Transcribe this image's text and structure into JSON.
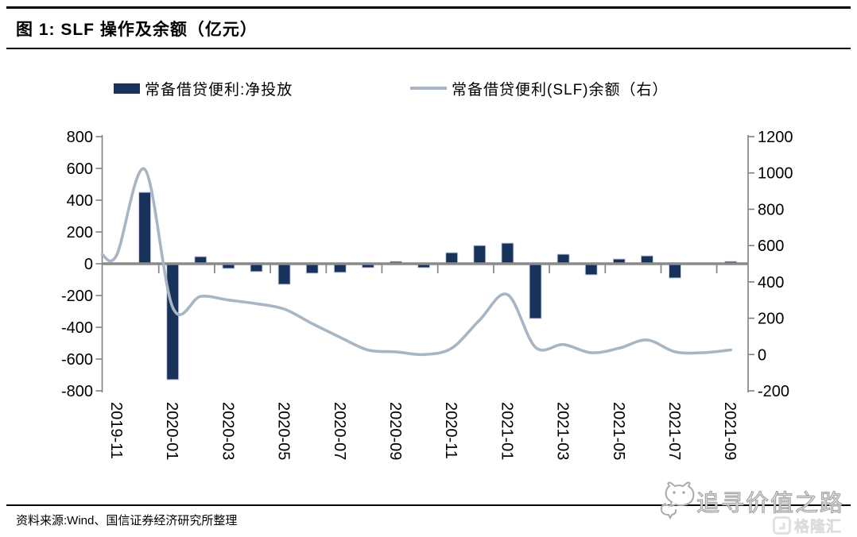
{
  "header": {
    "title": "图 1:  SLF 操作及余额（亿元）"
  },
  "legend": [
    {
      "label": "常备借贷便利:净投放",
      "type": "bar",
      "color": "#17325b"
    },
    {
      "label": "常备借贷便利(SLF)余额（右）",
      "type": "line",
      "color": "#a8b6c4"
    }
  ],
  "chart_data": {
    "type": "bar+line combo, dual y-axis",
    "title": "图 1: SLF 操作及余额（亿元）",
    "categories": [
      "2019-11",
      "2019-12",
      "2020-01",
      "2020-02",
      "2020-03",
      "2020-04",
      "2020-05",
      "2020-06",
      "2020-07",
      "2020-08",
      "2020-09",
      "2020-10",
      "2020-11",
      "2020-12",
      "2021-01",
      "2021-02",
      "2021-03",
      "2021-04",
      "2021-05",
      "2021-06",
      "2021-07",
      "2021-08",
      "2021-09"
    ],
    "x_tick_labels": [
      "2019-11",
      "2020-01",
      "2020-03",
      "2020-05",
      "2020-07",
      "2020-09",
      "2020-11",
      "2021-01",
      "2021-03",
      "2021-05",
      "2021-07",
      "2021-09"
    ],
    "series": [
      {
        "name": "常备借贷便利:净投放",
        "type": "bar",
        "axis": "left",
        "color": "#17325b",
        "values": [
          0,
          450,
          -730,
          45,
          -30,
          -50,
          -130,
          -60,
          -55,
          -25,
          15,
          -25,
          70,
          115,
          130,
          -345,
          60,
          -70,
          30,
          50,
          -90,
          0,
          15
        ]
      },
      {
        "name": "常备借贷便利(SLF)余额（右）",
        "type": "line",
        "axis": "right",
        "color": "#a8b6c4",
        "values": [
          550,
          1020,
          260,
          320,
          300,
          280,
          250,
          170,
          95,
          25,
          15,
          0,
          35,
          190,
          330,
          40,
          55,
          10,
          35,
          80,
          15,
          10,
          25
        ]
      }
    ],
    "left_axis": {
      "min": -800,
      "max": 800,
      "ticks": [
        800,
        600,
        400,
        200,
        0,
        -200,
        -400,
        -600,
        -800
      ]
    },
    "right_axis": {
      "min": -200,
      "max": 1200,
      "ticks": [
        1200,
        1000,
        800,
        600,
        400,
        200,
        0,
        -200
      ]
    },
    "grid": false,
    "legend_position": "top",
    "zero_line_color": "#8a8a8a",
    "axis_color": "#808080"
  },
  "footer": {
    "source": "资料来源:Wind、国信证券经济研究所整理"
  },
  "watermark": {
    "text": "追寻价值之路"
  },
  "logo": {
    "text": "格隆汇"
  }
}
